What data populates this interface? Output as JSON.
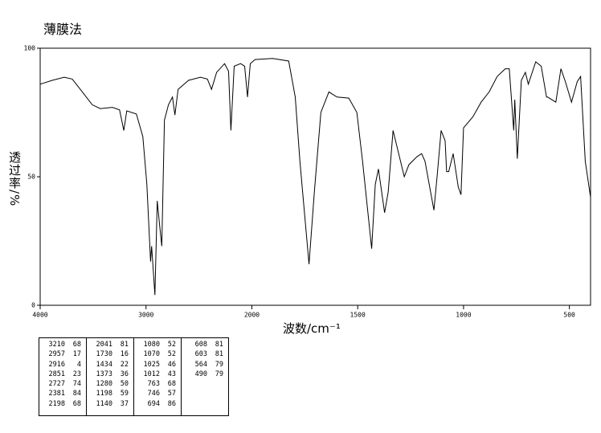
{
  "chart_data": {
    "type": "line",
    "title": "薄膜法",
    "x_label": "波数/cm⁻¹",
    "y_label": "透过率/%",
    "xlim": [
      4000,
      400
    ],
    "ylim": [
      0,
      100
    ],
    "x_scale_break": 2000,
    "x_scale_factor_below_break": 2,
    "xticks": [
      4000,
      3000,
      2000,
      1500,
      1000,
      500
    ],
    "yticks": [
      0,
      50,
      100
    ],
    "color": "#000000",
    "x": [
      4000,
      3886,
      3773,
      3697,
      3621,
      3508,
      3432,
      3318,
      3250,
      3210,
      3182,
      3091,
      3030,
      2992,
      2957,
      2947,
      2916,
      2894,
      2871,
      2851,
      2826,
      2788,
      2750,
      2727,
      2697,
      2598,
      2485,
      2420,
      2381,
      2333,
      2258,
      2220,
      2198,
      2167,
      2106,
      2068,
      2041,
      2015,
      1985,
      1902,
      1826,
      1795,
      1773,
      1730,
      1705,
      1674,
      1636,
      1598,
      1542,
      1504,
      1477,
      1434,
      1417,
      1402,
      1373,
      1356,
      1333,
      1280,
      1258,
      1220,
      1198,
      1182,
      1140,
      1125,
      1106,
      1087,
      1080,
      1070,
      1049,
      1025,
      1012,
      1000,
      955,
      917,
      879,
      841,
      803,
      784,
      763,
      758,
      746,
      727,
      708,
      694,
      670,
      659,
      633,
      608,
      603,
      564,
      540,
      519,
      490,
      463,
      447,
      425,
      400
    ],
    "values": [
      86,
      87.5,
      88.7,
      88,
      84,
      78,
      76.5,
      77,
      76,
      68,
      75.6,
      74.4,
      65.6,
      47,
      17,
      23,
      4,
      40.6,
      31,
      23,
      72,
      78,
      81,
      74,
      84,
      87.5,
      88.7,
      88,
      84,
      90.6,
      94,
      91,
      68,
      93,
      94,
      93,
      81,
      94,
      95.6,
      96,
      95,
      81,
      56,
      16,
      43.8,
      75,
      83,
      81,
      80.6,
      75,
      56,
      22,
      47,
      53,
      36,
      44,
      68,
      50,
      54.7,
      57.8,
      59,
      56,
      37,
      50,
      68,
      64,
      52,
      52,
      59,
      46,
      43,
      69,
      73.4,
      79,
      83,
      89,
      92,
      92,
      68,
      80,
      57,
      87.5,
      90.6,
      86,
      92,
      94.7,
      93,
      81,
      81,
      79,
      92,
      87,
      79,
      87,
      89,
      56,
      42
    ]
  },
  "peak_table": {
    "columns": [
      [
        [
          3210,
          68
        ],
        [
          2957,
          17
        ],
        [
          2916,
          4
        ],
        [
          2851,
          23
        ],
        [
          2727,
          74
        ],
        [
          2381,
          84
        ],
        [
          2198,
          68
        ]
      ],
      [
        [
          2041,
          81
        ],
        [
          1730,
          16
        ],
        [
          1434,
          22
        ],
        [
          1373,
          36
        ],
        [
          1280,
          50
        ],
        [
          1198,
          59
        ],
        [
          1140,
          37
        ]
      ],
      [
        [
          1080,
          52
        ],
        [
          1070,
          52
        ],
        [
          1025,
          46
        ],
        [
          1012,
          43
        ],
        [
          763,
          68
        ],
        [
          746,
          57
        ],
        [
          694,
          86
        ]
      ],
      [
        [
          608,
          81
        ],
        [
          603,
          81
        ],
        [
          564,
          79
        ],
        [
          490,
          79
        ]
      ]
    ]
  }
}
